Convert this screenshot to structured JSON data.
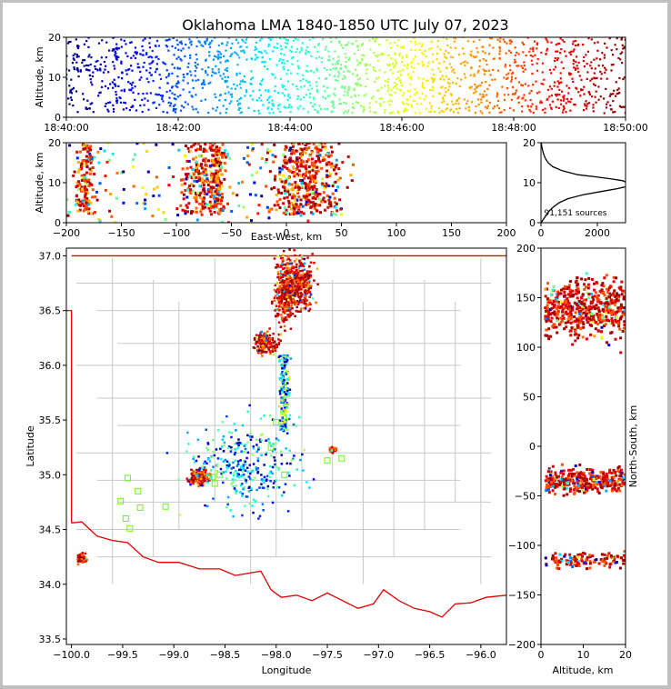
{
  "title": "Oklahoma LMA 1840-1850 UTC July 07, 2023",
  "chart_data": [
    {
      "panel": "altitude-time",
      "type": "scatter",
      "ylabel": "Altitude, km",
      "ylim": [
        0,
        20
      ],
      "yticks": [
        "0",
        "10",
        "20"
      ],
      "xlim": [
        "18:40:00",
        "18:50:00"
      ],
      "xticks": [
        "18:40:00",
        "18:42:00",
        "18:44:00",
        "18:46:00",
        "18:48:00",
        "18:50:00"
      ],
      "color_encoding": "time (blue = early, red = late)",
      "altitude_band_km": [
        1,
        20
      ]
    },
    {
      "panel": "altitude-east-west",
      "type": "scatter",
      "xlabel": "East-West, km",
      "ylabel": "Altitude, km",
      "xlim": [
        -200,
        200
      ],
      "ylim": [
        0,
        20
      ],
      "xticks": [
        "−200",
        "−150",
        "−100",
        "−50",
        "0",
        "50",
        "100",
        "150",
        "200"
      ],
      "yticks": [
        "0",
        "10",
        "20"
      ],
      "clusters_ew_km": [
        [
          -195,
          -170
        ],
        [
          -110,
          -50
        ],
        [
          -40,
          75
        ]
      ]
    },
    {
      "panel": "altitude-histogram",
      "type": "line",
      "xlim": [
        0,
        3000
      ],
      "ylim": [
        0,
        20
      ],
      "xticks": [
        "0",
        "2000"
      ],
      "yticks": [
        "0",
        "10",
        "20"
      ],
      "annotation": "91,151 sources",
      "series": [
        {
          "altitude_km": [
            0,
            1,
            2,
            3,
            4,
            5,
            6,
            7,
            8,
            8.5,
            9,
            9.5,
            10,
            10.5,
            11,
            11.5,
            12,
            13,
            14,
            15,
            16,
            17,
            18,
            19,
            20
          ],
          "count": [
            0,
            100,
            200,
            300,
            450,
            650,
            950,
            1500,
            2300,
            2700,
            3000,
            3100,
            3050,
            2900,
            2450,
            1900,
            1300,
            750,
            420,
            250,
            160,
            100,
            60,
            30,
            10
          ]
        }
      ]
    },
    {
      "panel": "plan-view",
      "type": "scatter",
      "xlabel": "Longitude",
      "ylabel": "Latitude",
      "xlim": [
        -100.05,
        -95.75
      ],
      "ylim": [
        33.45,
        37.07
      ],
      "xticks": [
        "−100.0",
        "−99.5",
        "−99.0",
        "−98.5",
        "−98.0",
        "−97.5",
        "−97.0",
        "−96.5",
        "−96.0"
      ],
      "yticks": [
        "33.5",
        "34.0",
        "34.5",
        "35.0",
        "35.5",
        "36.0",
        "36.5",
        "37.0"
      ],
      "stations": [
        [
          -98.0,
          35.48
        ],
        [
          -97.92,
          35.0
        ],
        [
          -98.05,
          35.25
        ],
        [
          -97.5,
          35.13
        ],
        [
          -97.36,
          35.15
        ],
        [
          -99.45,
          34.97
        ],
        [
          -99.35,
          34.85
        ],
        [
          -99.52,
          34.76
        ],
        [
          -99.33,
          34.7
        ],
        [
          -99.08,
          34.71
        ],
        [
          -99.47,
          34.6
        ],
        [
          -99.43,
          34.51
        ],
        [
          -98.6,
          34.92
        ],
        [
          -98.55,
          35.0
        ],
        [
          -98.62,
          34.98
        ]
      ]
    },
    {
      "panel": "altitude-north-south",
      "type": "scatter",
      "xlabel": "Altitude, km",
      "ylabel": "North-South, km",
      "xlim": [
        0,
        20
      ],
      "ylim": [
        -200,
        200
      ],
      "xticks": [
        "0",
        "10",
        "20"
      ],
      "yticks": [
        "−200",
        "−150",
        "−100",
        "−50",
        "0",
        "50",
        "100",
        "150",
        "200"
      ],
      "clusters_ns_km": [
        [
          75,
          200
        ],
        [
          -60,
          0
        ],
        [
          -130,
          -95
        ]
      ]
    }
  ]
}
